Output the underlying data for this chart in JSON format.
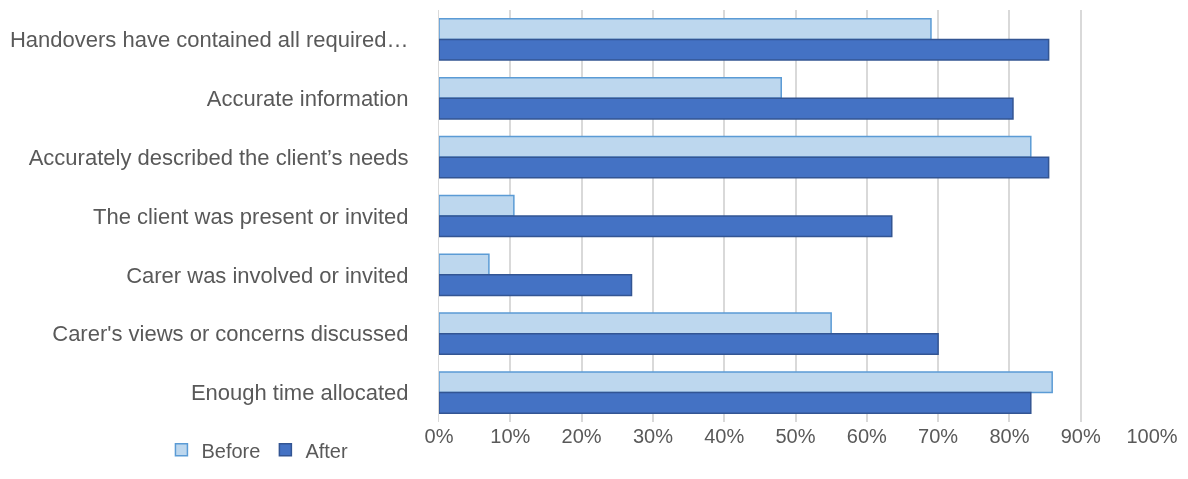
{
  "chart_data": {
    "type": "bar",
    "orientation": "horizontal",
    "categories": [
      "Handovers have contained all required…",
      "Accurate information",
      "Accurately described the client’s needs",
      "The client was present or invited",
      "Carer was involved or invited",
      "Carer's views or concerns discussed",
      "Enough time allocated"
    ],
    "series": [
      {
        "name": "Before",
        "color": "#bdd7ee",
        "values": [
          69,
          48,
          83,
          10.5,
          7,
          55,
          86
        ]
      },
      {
        "name": "After",
        "color": "#4472c4",
        "values": [
          85.5,
          80.5,
          85.5,
          63.5,
          27,
          70,
          83
        ]
      }
    ],
    "xlim": [
      0,
      100
    ],
    "xticks": [
      {
        "value": 0,
        "label": "0%"
      },
      {
        "value": 10,
        "label": "10%"
      },
      {
        "value": 20,
        "label": "20%"
      },
      {
        "value": 30,
        "label": "30%"
      },
      {
        "value": 40,
        "label": "40%"
      },
      {
        "value": 50,
        "label": "50%"
      },
      {
        "value": 60,
        "label": "60%"
      },
      {
        "value": 70,
        "label": "70%"
      },
      {
        "value": 80,
        "label": "80%"
      },
      {
        "value": 90,
        "label": "90%"
      },
      {
        "value": 100,
        "label": "100%"
      }
    ],
    "grid": "x",
    "legend": "bottom left"
  }
}
